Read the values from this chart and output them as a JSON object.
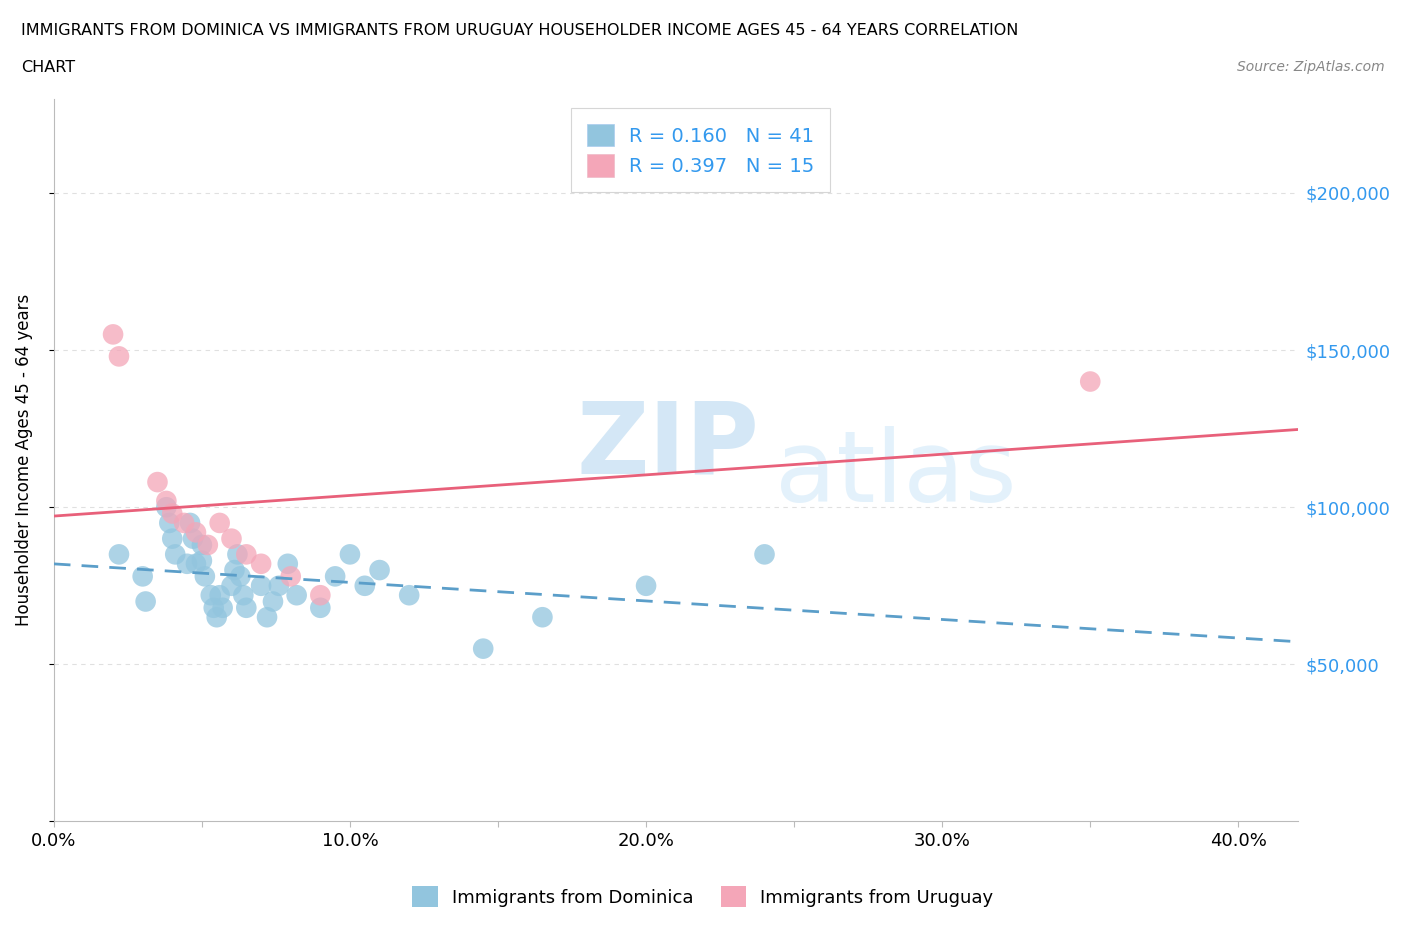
{
  "title_line1": "IMMIGRANTS FROM DOMINICA VS IMMIGRANTS FROM URUGUAY HOUSEHOLDER INCOME AGES 45 - 64 YEARS CORRELATION",
  "title_line2": "CHART",
  "source": "Source: ZipAtlas.com",
  "ylabel": "Householder Income Ages 45 - 64 years",
  "dominica_color": "#92C5DE",
  "uruguay_color": "#F4A6B8",
  "dominica_line_color": "#5B9EC9",
  "uruguay_line_color": "#E8607A",
  "R_dominica": 0.16,
  "N_dominica": 41,
  "R_uruguay": 0.397,
  "N_uruguay": 15,
  "watermark_zip": "ZIP",
  "watermark_atlas": "atlas",
  "xlim": [
    0.0,
    0.42
  ],
  "ylim": [
    0,
    230000
  ],
  "yticks": [
    0,
    50000,
    100000,
    150000,
    200000
  ],
  "ytick_labels": [
    "",
    "$50,000",
    "$100,000",
    "$150,000",
    "$200,000"
  ],
  "xtick_labels": [
    "0.0%",
    "",
    "10.0%",
    "",
    "20.0%",
    "",
    "30.0%",
    "",
    "40.0%"
  ],
  "xticks": [
    0.0,
    0.05,
    0.1,
    0.15,
    0.2,
    0.25,
    0.3,
    0.35,
    0.4
  ],
  "dominica_x": [
    0.022,
    0.03,
    0.031,
    0.038,
    0.039,
    0.04,
    0.041,
    0.045,
    0.046,
    0.047,
    0.048,
    0.05,
    0.05,
    0.051,
    0.053,
    0.054,
    0.055,
    0.056,
    0.057,
    0.06,
    0.061,
    0.062,
    0.063,
    0.064,
    0.065,
    0.07,
    0.072,
    0.074,
    0.076,
    0.079,
    0.082,
    0.09,
    0.095,
    0.1,
    0.105,
    0.11,
    0.12,
    0.145,
    0.165,
    0.2,
    0.24
  ],
  "dominica_y": [
    85000,
    78000,
    70000,
    100000,
    95000,
    90000,
    85000,
    82000,
    95000,
    90000,
    82000,
    88000,
    83000,
    78000,
    72000,
    68000,
    65000,
    72000,
    68000,
    75000,
    80000,
    85000,
    78000,
    72000,
    68000,
    75000,
    65000,
    70000,
    75000,
    82000,
    72000,
    68000,
    78000,
    85000,
    75000,
    80000,
    72000,
    55000,
    65000,
    75000,
    85000
  ],
  "uruguay_x": [
    0.02,
    0.022,
    0.035,
    0.038,
    0.04,
    0.044,
    0.048,
    0.052,
    0.056,
    0.06,
    0.065,
    0.07,
    0.08,
    0.09,
    0.35
  ],
  "uruguay_y": [
    155000,
    148000,
    108000,
    102000,
    98000,
    95000,
    92000,
    88000,
    95000,
    90000,
    85000,
    82000,
    78000,
    72000,
    140000
  ],
  "legend_label_dominica": "Immigrants from Dominica",
  "legend_label_uruguay": "Immigrants from Uruguay",
  "background_color": "#ffffff",
  "grid_color": "#e0e0e0"
}
